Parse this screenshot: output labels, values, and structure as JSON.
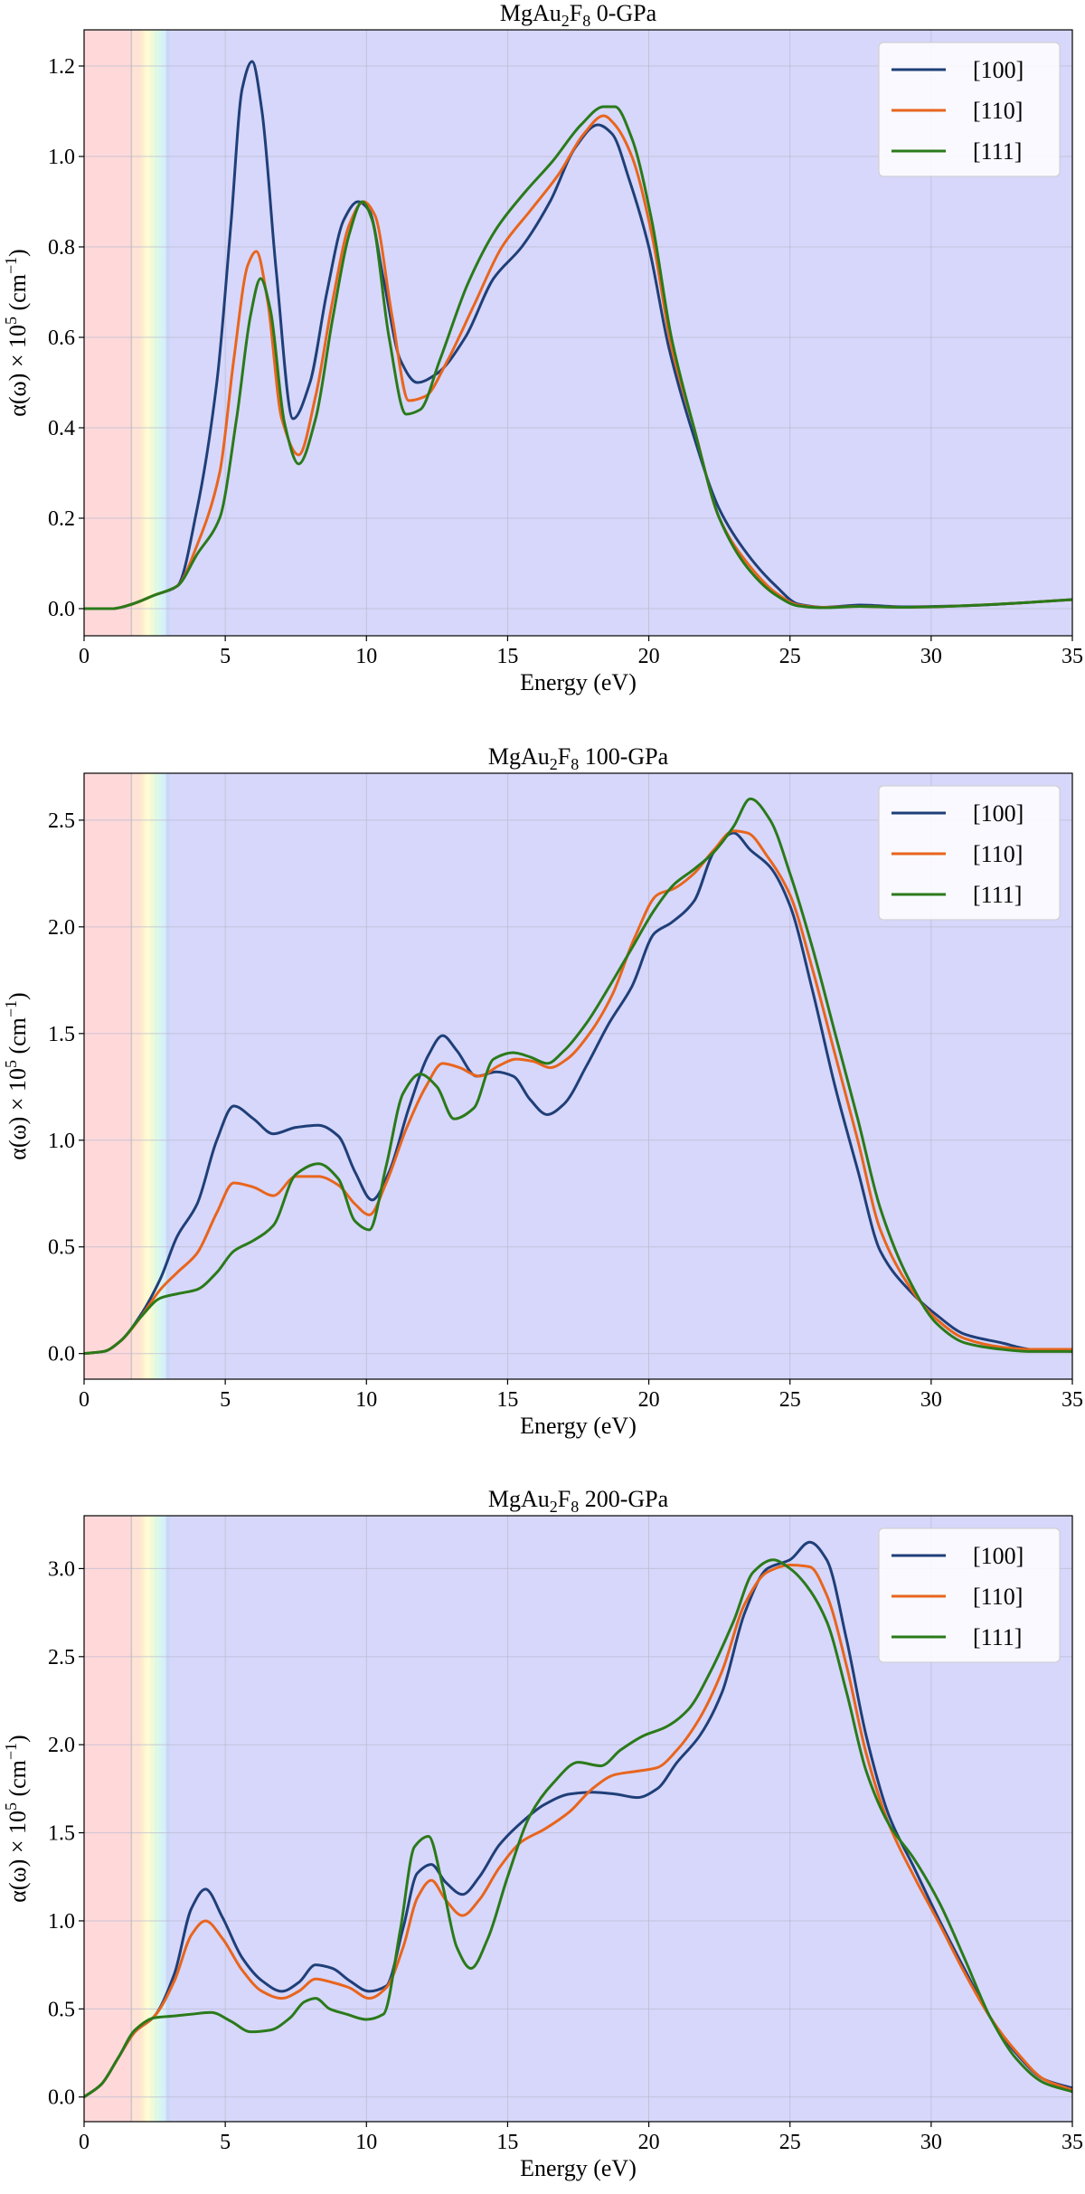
{
  "chart_data": [
    {
      "type": "line",
      "title_main": "MgAu",
      "title_sub": "2",
      "title_mid": "F",
      "title_sub2": "8",
      "title_end": " 0-GPa",
      "xlabel": "Energy (eV)",
      "ylabel": "α(ω) × 10",
      "ylabel_sup": "5",
      "ylabel_unit": " (cm",
      "ylabel_unit_sup": "−1",
      "ylabel_close": ")",
      "xlim": [
        0,
        35
      ],
      "ylim": [
        -0.06,
        1.28
      ],
      "xticks": [
        0,
        5,
        10,
        15,
        20,
        25,
        30,
        35
      ],
      "xtick_labels": [
        "0",
        "5",
        "10",
        "15",
        "20",
        "25",
        "30",
        "35"
      ],
      "yticks": [
        0.0,
        0.2,
        0.4,
        0.6,
        0.8,
        1.0,
        1.2
      ],
      "ytick_labels": [
        "0.0",
        "0.2",
        "0.4",
        "0.6",
        "0.8",
        "1.0",
        "1.2"
      ],
      "grid": true,
      "legend": "top-right",
      "series": [
        {
          "name": "[100]",
          "color": "#1f3f78",
          "x": [
            0,
            1,
            1.7,
            2.5,
            3.3,
            4,
            4.7,
            5.2,
            5.6,
            5.95,
            6.3,
            6.8,
            7.4,
            8,
            8.6,
            9.2,
            9.7,
            10.1,
            10.6,
            11.2,
            11.8,
            12.5,
            13.5,
            14.5,
            15.5,
            16.5,
            17.4,
            18.2,
            18.7,
            19.3,
            20,
            20.7,
            21.5,
            22.5,
            23.5,
            24.5,
            25.3,
            26.2,
            27.5,
            29,
            31,
            33,
            35
          ],
          "values": [
            0.0,
            0.0,
            0.01,
            0.03,
            0.05,
            0.22,
            0.5,
            0.85,
            1.15,
            1.21,
            1.1,
            0.75,
            0.42,
            0.5,
            0.7,
            0.86,
            0.9,
            0.88,
            0.73,
            0.55,
            0.5,
            0.52,
            0.6,
            0.73,
            0.8,
            0.9,
            1.02,
            1.07,
            1.05,
            0.95,
            0.8,
            0.58,
            0.4,
            0.22,
            0.12,
            0.05,
            0.01,
            0.003,
            0.008,
            0.004,
            0.006,
            0.012,
            0.02
          ]
        },
        {
          "name": "[110]",
          "color": "#e8651d",
          "x": [
            0,
            1,
            1.7,
            2.5,
            3.3,
            4,
            4.8,
            5.3,
            5.8,
            6.1,
            6.5,
            7.0,
            7.6,
            8.2,
            8.8,
            9.4,
            9.9,
            10.3,
            10.9,
            11.5,
            12.1,
            12.8,
            13.8,
            14.8,
            15.8,
            16.8,
            17.7,
            18.4,
            18.8,
            19.4,
            20.1,
            20.8,
            21.6,
            22.5,
            23.5,
            24.5,
            25.3,
            26.2,
            27.5,
            29,
            31,
            33,
            35
          ],
          "values": [
            0.0,
            0.0,
            0.01,
            0.03,
            0.05,
            0.14,
            0.3,
            0.55,
            0.76,
            0.79,
            0.68,
            0.42,
            0.34,
            0.47,
            0.68,
            0.85,
            0.9,
            0.87,
            0.65,
            0.46,
            0.47,
            0.54,
            0.67,
            0.8,
            0.88,
            0.96,
            1.05,
            1.09,
            1.07,
            1.0,
            0.83,
            0.58,
            0.4,
            0.2,
            0.1,
            0.035,
            0.008,
            0.003,
            0.005,
            0.003,
            0.006,
            0.012,
            0.02
          ]
        },
        {
          "name": "[111]",
          "color": "#2a7a1a",
          "x": [
            0,
            1,
            1.7,
            2.5,
            3.3,
            4,
            4.8,
            5.4,
            5.9,
            6.25,
            6.6,
            7.1,
            7.6,
            8.2,
            8.8,
            9.4,
            9.85,
            10.2,
            10.8,
            11.4,
            11.9,
            12.6,
            13.6,
            14.6,
            15.6,
            16.6,
            17.6,
            18.4,
            18.8,
            19.4,
            20.1,
            20.8,
            21.6,
            22.5,
            23.5,
            24.5,
            25.3,
            26.2,
            27.5,
            29,
            31,
            33,
            35
          ],
          "values": [
            0.0,
            0.0,
            0.01,
            0.03,
            0.05,
            0.12,
            0.2,
            0.42,
            0.65,
            0.73,
            0.66,
            0.41,
            0.32,
            0.42,
            0.64,
            0.83,
            0.9,
            0.86,
            0.6,
            0.43,
            0.44,
            0.55,
            0.72,
            0.84,
            0.92,
            0.99,
            1.07,
            1.11,
            1.11,
            1.04,
            0.86,
            0.6,
            0.4,
            0.2,
            0.09,
            0.03,
            0.006,
            0.002,
            0.005,
            0.003,
            0.006,
            0.012,
            0.02
          ]
        }
      ]
    },
    {
      "type": "line",
      "title_main": "MgAu",
      "title_sub": "2",
      "title_mid": "F",
      "title_sub2": "8",
      "title_end": " 100-GPa",
      "xlabel": "Energy (eV)",
      "ylabel": "α(ω) × 10",
      "ylabel_sup": "5",
      "ylabel_unit": " (cm",
      "ylabel_unit_sup": "−1",
      "ylabel_close": ")",
      "xlim": [
        0,
        35
      ],
      "ylim": [
        -0.12,
        2.72
      ],
      "xticks": [
        0,
        5,
        10,
        15,
        20,
        25,
        30,
        35
      ],
      "xtick_labels": [
        "0",
        "5",
        "10",
        "15",
        "20",
        "25",
        "30",
        "35"
      ],
      "yticks": [
        0.0,
        0.5,
        1.0,
        1.5,
        2.0,
        2.5
      ],
      "ytick_labels": [
        "0.0",
        "0.5",
        "1.0",
        "1.5",
        "2.0",
        "2.5"
      ],
      "grid": true,
      "legend": "top-right",
      "series": [
        {
          "name": "[100]",
          "color": "#1f3f78",
          "x": [
            0,
            0.7,
            1.3,
            2,
            2.7,
            3.3,
            4,
            4.7,
            5.3,
            6,
            6.7,
            7.5,
            8.3,
            9,
            9.6,
            10.2,
            10.8,
            11.5,
            12.2,
            12.7,
            13.2,
            13.9,
            14.6,
            15.2,
            15.8,
            16.4,
            17,
            17.8,
            18.6,
            19.4,
            20.2,
            20.8,
            21.6,
            22.3,
            23.0,
            23.6,
            24.3,
            25.0,
            25.8,
            26.6,
            27.4,
            28.2,
            29.2,
            30.2,
            31.2,
            32.5,
            33.5,
            35
          ],
          "values": [
            0.0,
            0.01,
            0.06,
            0.18,
            0.35,
            0.55,
            0.7,
            1.0,
            1.16,
            1.1,
            1.03,
            1.06,
            1.07,
            1.02,
            0.85,
            0.72,
            0.85,
            1.15,
            1.4,
            1.49,
            1.42,
            1.3,
            1.32,
            1.3,
            1.19,
            1.12,
            1.17,
            1.35,
            1.55,
            1.72,
            1.97,
            2.02,
            2.12,
            2.35,
            2.44,
            2.36,
            2.28,
            2.1,
            1.7,
            1.25,
            0.86,
            0.48,
            0.3,
            0.18,
            0.09,
            0.05,
            0.02,
            0.01
          ]
        },
        {
          "name": "[110]",
          "color": "#e8651d",
          "x": [
            0,
            0.7,
            1.3,
            2,
            2.7,
            3.3,
            4,
            4.7,
            5.3,
            6,
            6.7,
            7.5,
            8.3,
            9,
            9.6,
            10.1,
            10.7,
            11.4,
            12.1,
            12.7,
            13.3,
            14.0,
            14.7,
            15.3,
            15.9,
            16.5,
            17.1,
            17.9,
            18.7,
            19.5,
            20.3,
            20.9,
            21.6,
            22.3,
            23.0,
            23.5,
            24.2,
            25.0,
            25.8,
            26.6,
            27.4,
            28.2,
            29.2,
            30.2,
            31.2,
            32.5,
            33.5,
            35
          ],
          "values": [
            0.0,
            0.01,
            0.06,
            0.17,
            0.3,
            0.38,
            0.47,
            0.66,
            0.8,
            0.78,
            0.74,
            0.83,
            0.83,
            0.79,
            0.7,
            0.65,
            0.8,
            1.05,
            1.25,
            1.36,
            1.34,
            1.3,
            1.35,
            1.38,
            1.37,
            1.34,
            1.38,
            1.5,
            1.68,
            1.95,
            2.15,
            2.18,
            2.25,
            2.36,
            2.45,
            2.44,
            2.33,
            2.15,
            1.8,
            1.4,
            1.0,
            0.58,
            0.32,
            0.16,
            0.07,
            0.03,
            0.02,
            0.02
          ]
        },
        {
          "name": "[111]",
          "color": "#2a7a1a",
          "x": [
            0,
            0.7,
            1.3,
            2,
            2.7,
            3.3,
            4,
            4.7,
            5.3,
            6,
            6.7,
            7.5,
            8.3,
            9,
            9.6,
            10.1,
            10.7,
            11.3,
            11.9,
            12.5,
            13.1,
            13.8,
            14.5,
            15.2,
            15.8,
            16.4,
            17.0,
            17.8,
            18.6,
            19.4,
            20.2,
            20.9,
            21.6,
            22.3,
            23.0,
            23.6,
            24.3,
            25.0,
            25.8,
            26.6,
            27.4,
            28.2,
            29.2,
            30.2,
            31.2,
            32.5,
            33.5,
            35
          ],
          "values": [
            0.0,
            0.01,
            0.06,
            0.17,
            0.26,
            0.28,
            0.3,
            0.38,
            0.48,
            0.53,
            0.6,
            0.84,
            0.89,
            0.82,
            0.62,
            0.58,
            0.88,
            1.22,
            1.31,
            1.25,
            1.1,
            1.15,
            1.38,
            1.41,
            1.39,
            1.36,
            1.42,
            1.55,
            1.72,
            1.9,
            2.08,
            2.2,
            2.27,
            2.35,
            2.47,
            2.6,
            2.5,
            2.25,
            1.9,
            1.5,
            1.1,
            0.68,
            0.35,
            0.14,
            0.05,
            0.02,
            0.01,
            0.01
          ]
        }
      ]
    },
    {
      "type": "line",
      "title_main": "MgAu",
      "title_sub": "2",
      "title_mid": "F",
      "title_sub2": "8",
      "title_end": " 200-GPa",
      "xlabel": "Energy (eV)",
      "ylabel": "α(ω) × 10",
      "ylabel_sup": "5",
      "ylabel_unit": " (cm",
      "ylabel_unit_sup": "−1",
      "ylabel_close": ")",
      "xlim": [
        0,
        35
      ],
      "ylim": [
        -0.14,
        3.3
      ],
      "xticks": [
        0,
        5,
        10,
        15,
        20,
        25,
        30,
        35
      ],
      "xtick_labels": [
        "0",
        "5",
        "10",
        "15",
        "20",
        "25",
        "30",
        "35"
      ],
      "yticks": [
        0.0,
        0.5,
        1.0,
        1.5,
        2.0,
        2.5,
        3.0
      ],
      "ytick_labels": [
        "0.0",
        "0.5",
        "1.0",
        "1.5",
        "2.0",
        "2.5",
        "3.0"
      ],
      "grid": true,
      "legend": "top-right",
      "series": [
        {
          "name": "[100]",
          "color": "#1f3f78",
          "x": [
            0,
            0.6,
            1.2,
            1.8,
            2.5,
            3.2,
            3.8,
            4.3,
            4.9,
            5.6,
            6.3,
            7.0,
            7.6,
            8.2,
            8.8,
            9.4,
            10.1,
            10.7,
            11.3,
            11.8,
            12.3,
            12.8,
            13.4,
            14.0,
            14.7,
            15.5,
            16.3,
            17.2,
            18.0,
            18.8,
            19.6,
            20.3,
            21.0,
            21.8,
            22.6,
            23.4,
            24.2,
            25.0,
            25.7,
            26.3,
            27.0,
            27.7,
            28.5,
            29.4,
            30.3,
            31.2,
            32.1,
            33.0,
            34.0,
            35
          ],
          "values": [
            0.0,
            0.07,
            0.22,
            0.37,
            0.46,
            0.7,
            1.07,
            1.18,
            1.02,
            0.79,
            0.66,
            0.6,
            0.65,
            0.75,
            0.73,
            0.66,
            0.6,
            0.63,
            0.96,
            1.27,
            1.32,
            1.22,
            1.15,
            1.25,
            1.43,
            1.56,
            1.66,
            1.72,
            1.73,
            1.72,
            1.7,
            1.75,
            1.9,
            2.05,
            2.3,
            2.75,
            3.0,
            3.05,
            3.15,
            3.05,
            2.6,
            2.05,
            1.6,
            1.3,
            1.0,
            0.72,
            0.45,
            0.25,
            0.1,
            0.05
          ]
        },
        {
          "name": "[110]",
          "color": "#e8651d",
          "x": [
            0,
            0.6,
            1.2,
            1.8,
            2.5,
            3.2,
            3.8,
            4.3,
            4.9,
            5.6,
            6.3,
            7.0,
            7.6,
            8.2,
            8.8,
            9.4,
            10.1,
            10.7,
            11.3,
            11.8,
            12.3,
            12.8,
            13.4,
            14.0,
            14.7,
            15.5,
            16.3,
            17.2,
            18.0,
            18.8,
            19.6,
            20.3,
            21.0,
            21.8,
            22.6,
            23.4,
            24.2,
            25.0,
            25.7,
            26.3,
            27.0,
            27.7,
            28.5,
            29.4,
            30.3,
            31.2,
            32.1,
            33.0,
            34.0,
            35
          ],
          "values": [
            0.0,
            0.07,
            0.22,
            0.37,
            0.46,
            0.66,
            0.92,
            1.0,
            0.9,
            0.72,
            0.6,
            0.56,
            0.6,
            0.67,
            0.65,
            0.62,
            0.56,
            0.62,
            0.85,
            1.13,
            1.23,
            1.12,
            1.03,
            1.12,
            1.3,
            1.45,
            1.52,
            1.62,
            1.75,
            1.83,
            1.85,
            1.87,
            1.97,
            2.15,
            2.42,
            2.8,
            2.98,
            3.02,
            3.01,
            2.85,
            2.45,
            1.95,
            1.55,
            1.25,
            0.98,
            0.7,
            0.45,
            0.26,
            0.1,
            0.04
          ]
        },
        {
          "name": "[111]",
          "color": "#2a7a1a",
          "x": [
            0,
            0.6,
            1.2,
            1.8,
            2.5,
            3.2,
            3.8,
            4.5,
            5.2,
            5.9,
            6.6,
            7.3,
            7.8,
            8.2,
            8.7,
            9.3,
            10.0,
            10.6,
            11.2,
            11.7,
            12.2,
            12.7,
            13.2,
            13.7,
            14.3,
            15.0,
            15.8,
            16.6,
            17.5,
            18.3,
            19.0,
            19.8,
            20.6,
            21.4,
            22.2,
            23.0,
            23.7,
            24.4,
            25.0,
            25.6,
            26.3,
            27.0,
            27.7,
            28.5,
            29.4,
            30.3,
            31.2,
            32.1,
            33.0,
            34.0,
            35
          ],
          "values": [
            0.0,
            0.07,
            0.22,
            0.38,
            0.45,
            0.46,
            0.47,
            0.48,
            0.43,
            0.37,
            0.38,
            0.45,
            0.54,
            0.56,
            0.5,
            0.47,
            0.44,
            0.47,
            0.95,
            1.42,
            1.48,
            1.2,
            0.85,
            0.73,
            0.9,
            1.25,
            1.6,
            1.78,
            1.9,
            1.88,
            1.97,
            2.05,
            2.1,
            2.2,
            2.42,
            2.7,
            2.98,
            3.05,
            3.0,
            2.9,
            2.7,
            2.3,
            1.85,
            1.55,
            1.35,
            1.1,
            0.78,
            0.45,
            0.22,
            0.08,
            0.03
          ]
        }
      ]
    }
  ]
}
